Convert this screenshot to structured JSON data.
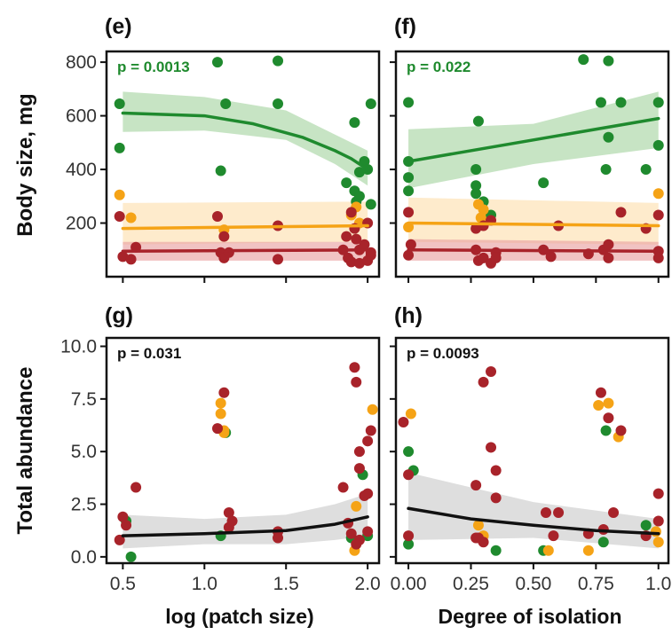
{
  "figure": {
    "ylabel_top": "Body size, mg",
    "ylabel_bottom": "Total abundance",
    "xlabel_left": "log (patch size)",
    "xlabel_right": "Degree of isolation"
  },
  "colors": {
    "green": "#1f8a2e",
    "orange": "#f5a316",
    "red": "#a8232a",
    "black": "#111111",
    "green_band": "#a9d6a4",
    "orange_band": "#fde0b0",
    "red_band": "#e9a3a3",
    "grey_band": "#cccccc"
  },
  "chart_data": [
    {
      "type": "scatter",
      "panel": "e",
      "annotation": "p = 0.0013",
      "annotation_color": "green",
      "xlim": [
        0.4,
        2.07
      ],
      "ylim": [
        0,
        840
      ],
      "xticks": [
        "0.5",
        "1.0",
        "1.5",
        "2.0"
      ],
      "xtick_values": [
        0.5,
        1.0,
        1.5,
        2.0
      ],
      "show_xtick_labels": false,
      "yticks": [
        "200",
        "400",
        "600",
        "800"
      ],
      "ytick_values": [
        200,
        400,
        600,
        800
      ],
      "show_ytick_labels": true,
      "bands": [
        {
          "color": "green",
          "x": [
            0.5,
            1.0,
            1.5,
            1.8,
            2.0
          ],
          "lower": [
            540,
            545,
            510,
            420,
            340
          ],
          "upper": [
            690,
            670,
            620,
            530,
            470
          ]
        },
        {
          "color": "orange",
          "x": [
            0.5,
            2.0
          ],
          "lower": [
            120,
            130
          ],
          "upper": [
            275,
            280
          ]
        },
        {
          "color": "red",
          "x": [
            0.5,
            2.0
          ],
          "lower": [
            60,
            60
          ],
          "upper": [
            130,
            130
          ]
        }
      ],
      "lines": [
        {
          "color": "green",
          "x": [
            0.5,
            1.0,
            1.3,
            1.6,
            1.8,
            1.9,
            2.0
          ],
          "y": [
            610,
            600,
            570,
            520,
            470,
            440,
            400
          ]
        },
        {
          "color": "orange",
          "x": [
            0.5,
            2.0
          ],
          "y": [
            180,
            190
          ]
        },
        {
          "color": "red",
          "x": [
            0.5,
            2.0
          ],
          "y": [
            95,
            100
          ]
        }
      ],
      "points": [
        {
          "color": "green",
          "x": [
            0.48,
            0.48,
            1.08,
            1.1,
            1.13,
            1.45,
            1.45,
            1.87,
            1.92,
            1.93,
            1.95,
            1.95,
            1.98,
            2.0,
            2.02,
            2.02,
            1.92
          ],
          "y": [
            645,
            480,
            800,
            395,
            645,
            805,
            645,
            350,
            320,
            280,
            300,
            390,
            430,
            400,
            645,
            270,
            575
          ]
        },
        {
          "color": "orange",
          "x": [
            0.48,
            0.55,
            1.12,
            1.9,
            1.93,
            1.95
          ],
          "y": [
            305,
            220,
            175,
            230,
            260,
            200
          ]
        },
        {
          "color": "red",
          "x": [
            0.48,
            0.5,
            0.55,
            0.58,
            1.08,
            1.1,
            1.12,
            1.12,
            1.15,
            1.45,
            1.45,
            1.85,
            1.88,
            1.9,
            1.9,
            1.92,
            1.95,
            1.95,
            1.98,
            2.0,
            2.0,
            2.02,
            2.02,
            1.87,
            1.93
          ],
          "y": [
            225,
            75,
            65,
            110,
            225,
            90,
            70,
            150,
            90,
            190,
            65,
            100,
            70,
            240,
            55,
            180,
            100,
            50,
            120,
            200,
            60,
            80,
            90,
            150,
            140
          ]
        }
      ]
    },
    {
      "type": "scatter",
      "panel": "f",
      "annotation": "p = 0.022",
      "annotation_color": "green",
      "xlim": [
        -0.05,
        1.04
      ],
      "ylim": [
        0,
        840
      ],
      "xticks": [
        "0.00",
        "0.25",
        "0.50",
        "0.75",
        "1.0"
      ],
      "xtick_values": [
        0.0,
        0.25,
        0.5,
        0.75,
        1.0
      ],
      "show_xtick_labels": false,
      "yticks": [
        "200",
        "400",
        "600",
        "800"
      ],
      "ytick_values": [
        200,
        400,
        600,
        800
      ],
      "show_ytick_labels": false,
      "bands": [
        {
          "color": "green",
          "x": [
            0.0,
            0.5,
            1.0
          ],
          "lower": [
            330,
            420,
            480
          ],
          "upper": [
            550,
            570,
            690
          ]
        },
        {
          "color": "orange",
          "x": [
            0.0,
            1.0
          ],
          "lower": [
            130,
            120
          ],
          "upper": [
            295,
            275
          ]
        },
        {
          "color": "red",
          "x": [
            0.0,
            1.0
          ],
          "lower": [
            60,
            60
          ],
          "upper": [
            140,
            130
          ]
        }
      ],
      "lines": [
        {
          "color": "green",
          "x": [
            0.0,
            1.0
          ],
          "y": [
            430,
            590
          ]
        },
        {
          "color": "orange",
          "x": [
            0.0,
            1.0
          ],
          "y": [
            200,
            190
          ]
        },
        {
          "color": "red",
          "x": [
            0.0,
            1.0
          ],
          "y": [
            100,
            95
          ]
        }
      ],
      "points": [
        {
          "color": "green",
          "x": [
            0.0,
            0.0,
            0.0,
            0.0,
            0.27,
            0.28,
            0.27,
            0.27,
            0.3,
            0.33,
            0.54,
            0.7,
            0.77,
            0.79,
            0.8,
            0.8,
            0.85,
            0.95,
            1.0,
            1.0
          ],
          "y": [
            650,
            430,
            370,
            320,
            400,
            580,
            340,
            310,
            280,
            230,
            350,
            810,
            650,
            400,
            805,
            520,
            650,
            400,
            650,
            490
          ]
        },
        {
          "color": "orange",
          "x": [
            0.0,
            0.28,
            0.3,
            0.29,
            1.0
          ],
          "y": [
            185,
            270,
            250,
            220,
            310
          ]
        },
        {
          "color": "red",
          "x": [
            0.0,
            0.0,
            0.01,
            0.27,
            0.28,
            0.3,
            0.3,
            0.33,
            0.35,
            0.33,
            0.54,
            0.57,
            0.6,
            0.72,
            0.78,
            0.8,
            0.8,
            0.85,
            0.95,
            1.0,
            1.0,
            1.0,
            0.27,
            0.35
          ],
          "y": [
            240,
            80,
            120,
            100,
            60,
            190,
            70,
            210,
            90,
            50,
            100,
            75,
            190,
            85,
            100,
            120,
            70,
            240,
            180,
            230,
            95,
            70,
            180,
            70
          ]
        }
      ]
    },
    {
      "type": "scatter",
      "panel": "g",
      "annotation": "p = 0.031",
      "annotation_color": "black",
      "xlim": [
        0.4,
        2.07
      ],
      "ylim": [
        -0.3,
        10.4
      ],
      "xticks": [
        "0.5",
        "1.0",
        "1.5",
        "2.0"
      ],
      "xtick_values": [
        0.5,
        1.0,
        1.5,
        2.0
      ],
      "show_xtick_labels": true,
      "yticks": [
        "0.0",
        "2.5",
        "5.0",
        "7.5",
        "10.0"
      ],
      "ytick_values": [
        0,
        2.5,
        5.0,
        7.5,
        10.0
      ],
      "show_ytick_labels": true,
      "bands": [
        {
          "color": "grey",
          "x": [
            0.5,
            1.0,
            1.5,
            1.8,
            2.0
          ],
          "lower": [
            0.4,
            0.6,
            0.6,
            0.8,
            1.0
          ],
          "upper": [
            2.0,
            1.8,
            2.0,
            2.5,
            3.0
          ]
        }
      ],
      "lines": [
        {
          "color": "black",
          "x": [
            0.5,
            1.0,
            1.5,
            1.8,
            2.0
          ],
          "y": [
            1.0,
            1.1,
            1.25,
            1.55,
            1.9
          ]
        }
      ],
      "points": [
        {
          "color": "green",
          "x": [
            0.52,
            0.55,
            1.13,
            1.1,
            1.9,
            1.97,
            2.0
          ],
          "y": [
            1.7,
            0.0,
            5.9,
            1.0,
            0.9,
            3.9,
            1.0
          ]
        },
        {
          "color": "orange",
          "x": [
            1.1,
            1.1,
            1.12,
            1.12,
            1.92,
            2.03,
            1.93
          ],
          "y": [
            7.3,
            6.8,
            6.0,
            5.9,
            0.3,
            7.0,
            2.4
          ]
        },
        {
          "color": "red",
          "x": [
            0.48,
            0.5,
            0.52,
            0.58,
            1.08,
            1.12,
            1.15,
            1.15,
            1.17,
            1.45,
            1.45,
            1.85,
            1.88,
            1.9,
            1.92,
            1.93,
            1.95,
            1.95,
            1.98,
            2.0,
            2.0,
            2.02,
            2.0,
            1.93,
            1.95
          ],
          "y": [
            0.8,
            1.9,
            1.5,
            3.3,
            6.1,
            7.8,
            2.1,
            1.4,
            1.7,
            1.2,
            0.9,
            3.3,
            1.6,
            1.1,
            9.0,
            8.3,
            4.2,
            0.8,
            2.9,
            5.5,
            3.0,
            6.0,
            1.2,
            0.6,
            5.0
          ]
        }
      ]
    },
    {
      "type": "scatter",
      "panel": "h",
      "annotation": "p = 0.0093",
      "annotation_color": "black",
      "xlim": [
        -0.05,
        1.04
      ],
      "ylim": [
        -0.3,
        10.4
      ],
      "xticks": [
        "0.00",
        "0.25",
        "0.50",
        "0.75",
        "1.0"
      ],
      "xtick_values": [
        0.0,
        0.25,
        0.5,
        0.75,
        1.0
      ],
      "show_xtick_labels": true,
      "yticks": [
        "0.0",
        "2.5",
        "5.0",
        "7.5",
        "10.0"
      ],
      "ytick_values": [
        0,
        2.5,
        5.0,
        7.5,
        10.0
      ],
      "show_ytick_labels": false,
      "bands": [
        {
          "color": "grey",
          "x": [
            0.0,
            0.5,
            1.0
          ],
          "lower": [
            0.8,
            0.9,
            0.4
          ],
          "upper": [
            4.0,
            2.6,
            1.8
          ]
        }
      ],
      "lines": [
        {
          "color": "black",
          "x": [
            0.0,
            0.25,
            0.5,
            0.75,
            1.0
          ],
          "y": [
            2.3,
            1.8,
            1.5,
            1.25,
            1.1
          ]
        }
      ],
      "points": [
        {
          "color": "green",
          "x": [
            0.0,
            0.02,
            0.0,
            0.35,
            0.54,
            0.79,
            0.95,
            0.78
          ],
          "y": [
            5.0,
            4.1,
            0.6,
            0.3,
            0.3,
            6.0,
            1.5,
            0.7
          ]
        },
        {
          "color": "orange",
          "x": [
            0.01,
            0.28,
            0.3,
            0.56,
            0.72,
            0.76,
            0.8,
            0.84,
            1.0,
            0.99
          ],
          "y": [
            6.8,
            1.5,
            1.0,
            0.3,
            0.3,
            7.2,
            7.3,
            5.7,
            0.7,
            1.2
          ]
        },
        {
          "color": "red",
          "x": [
            -0.02,
            0.0,
            0.0,
            0.27,
            0.28,
            0.3,
            0.33,
            0.33,
            0.35,
            0.35,
            0.55,
            0.58,
            0.6,
            0.72,
            0.77,
            0.78,
            0.8,
            0.82,
            0.85,
            0.95,
            1.0,
            1.0,
            0.3,
            0.27
          ],
          "y": [
            6.4,
            3.9,
            1.0,
            3.4,
            0.9,
            8.3,
            8.8,
            5.2,
            2.8,
            4.1,
            2.1,
            1.0,
            2.1,
            1.1,
            7.8,
            1.3,
            6.6,
            2.1,
            6.0,
            1.0,
            3.0,
            1.7,
            0.7,
            0.9
          ]
        }
      ]
    }
  ]
}
